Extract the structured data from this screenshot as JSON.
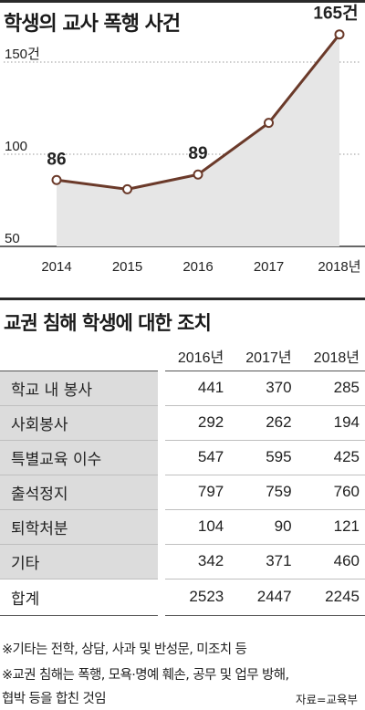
{
  "chart_data": {
    "type": "line",
    "title": "학생의 교사 폭행 사건",
    "x": [
      "2014",
      "2015",
      "2016",
      "2017",
      "2018"
    ],
    "x_tick_labels": [
      "2014",
      "2015",
      "2016",
      "2017",
      "2018년"
    ],
    "series": [
      {
        "values": [
          86,
          81,
          89,
          117,
          165
        ],
        "color": "#6b3a2a"
      }
    ],
    "data_labels": [
      "86",
      "",
      "89",
      "",
      "165건"
    ],
    "y_ticks": [
      {
        "value": 150,
        "label": "150건"
      },
      {
        "value": 100,
        "label": "100"
      },
      {
        "value": 50,
        "label": "50"
      }
    ],
    "ylim": [
      50,
      180
    ],
    "grid": "dotted",
    "fill_color": "#e6e6e6"
  },
  "table": {
    "title": "교권 침해 학생에 대한 조치",
    "headers": [
      "",
      "2016년",
      "2017년",
      "2018년"
    ],
    "rows": [
      {
        "label": "학교 내 봉사",
        "values": [
          "441",
          "370",
          "285"
        ]
      },
      {
        "label": "사회봉사",
        "values": [
          "292",
          "262",
          "194"
        ]
      },
      {
        "label": "특별교육 이수",
        "values": [
          "547",
          "595",
          "425"
        ]
      },
      {
        "label": "출석정지",
        "values": [
          "797",
          "759",
          "760"
        ]
      },
      {
        "label": "퇴학처분",
        "values": [
          "104",
          "90",
          "121"
        ]
      },
      {
        "label": "기타",
        "values": [
          "342",
          "371",
          "460"
        ]
      }
    ],
    "total": {
      "label": "합계",
      "values": [
        "2523",
        "2447",
        "2245"
      ]
    }
  },
  "notes": [
    "※기타는 전학, 상담, 사과 및 반성문, 미조치 등",
    "※교권 침해는 폭행, 모욕·명예 훼손, 공무 및 업무 방해,",
    "협박 등을 합친 것임"
  ],
  "source": "자료=교육부"
}
